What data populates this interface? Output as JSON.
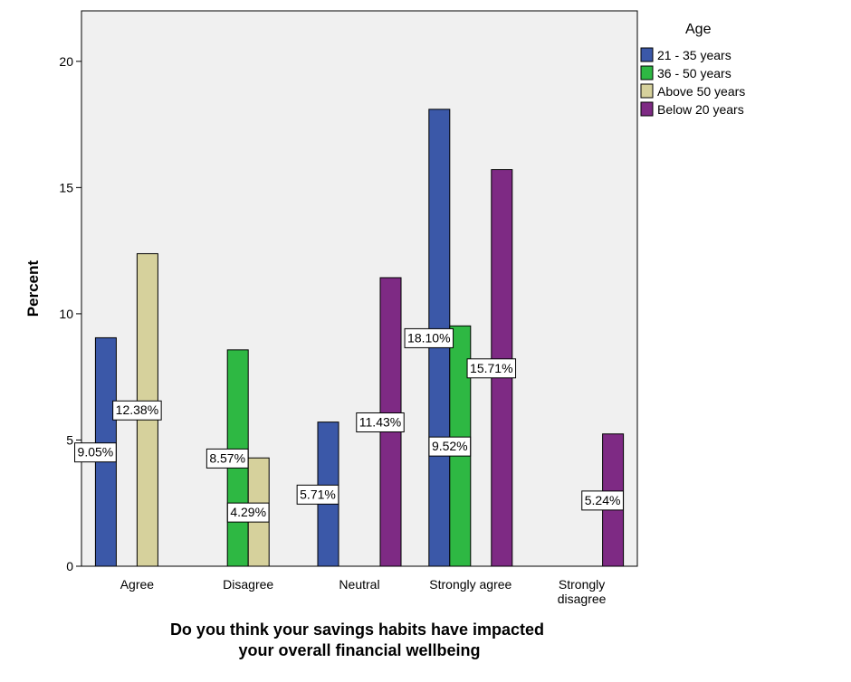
{
  "chart_data": {
    "type": "bar",
    "title": "",
    "xlabel": "Do you think your savings habits have impacted your overall financial wellbeing",
    "xlabel_lines": [
      "Do you think your savings habits have impacted",
      "your overall financial wellbeing"
    ],
    "ylabel": "Percent",
    "ylim": [
      0,
      22
    ],
    "yticks": [
      0,
      5,
      10,
      15,
      20
    ],
    "categories": [
      "Agree",
      "Disagree",
      "Neutral",
      "Strongly agree",
      "Strongly disagree"
    ],
    "category_lines": [
      [
        "Agree"
      ],
      [
        "Disagree"
      ],
      [
        "Neutral"
      ],
      [
        "Strongly agree"
      ],
      [
        "Strongly",
        "disagree"
      ]
    ],
    "legend_title": "Age",
    "legend_position": "top-right, outside plot",
    "grid": false,
    "series": [
      {
        "name": "21 - 35 years",
        "color": "#3b58a8",
        "values": [
          9.05,
          null,
          5.71,
          18.1,
          null
        ],
        "labels": [
          "9.05%",
          null,
          "5.71%",
          "18.10%",
          null
        ]
      },
      {
        "name": "36 - 50 years",
        "color": "#2eb843",
        "values": [
          null,
          8.57,
          null,
          9.52,
          null
        ],
        "labels": [
          null,
          "8.57%",
          null,
          "9.52%",
          null
        ]
      },
      {
        "name": "Above 50 years",
        "color": "#d6d19c",
        "values": [
          12.38,
          4.29,
          null,
          null,
          null
        ],
        "labels": [
          "12.38%",
          "4.29%",
          null,
          null,
          null
        ]
      },
      {
        "name": "Below 20 years",
        "color": "#7e2a84",
        "values": [
          null,
          null,
          11.43,
          15.71,
          5.24
        ],
        "labels": [
          null,
          null,
          "11.43%",
          "15.71%",
          "5.24%"
        ]
      }
    ]
  }
}
